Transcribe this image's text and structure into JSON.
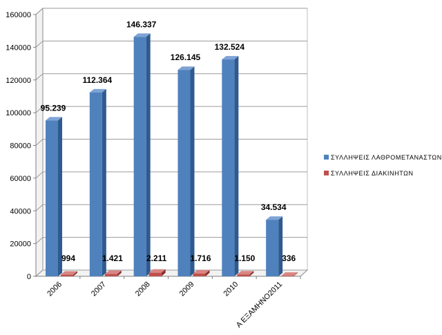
{
  "chart_data": {
    "type": "bar",
    "style": "3d-clustered-column",
    "categories": [
      "2006",
      "2007",
      "2008",
      "2009",
      "2010",
      "Α ΕΞΑΜΗΝΟ2011"
    ],
    "series": [
      {
        "name": "ΣΥΛΛΗΨΕΙΣ ΛΑΘΡΟΜΕΤΑΝΑΣΤΩΝ",
        "values": [
          95239,
          112364,
          146337,
          126145,
          132524,
          34534
        ],
        "labels": [
          "95.239",
          "112.364",
          "146.337",
          "126.145",
          "132.524",
          "34.534"
        ],
        "color": "#4f81bd"
      },
      {
        "name": "ΣΥΛΛΗΨΕΙΣ ΔΙΑΚΙΝΗΤΩΝ",
        "values": [
          994,
          1421,
          2211,
          1716,
          1150,
          336
        ],
        "labels": [
          "994",
          "1.421",
          "2.211",
          "1.716",
          "1.150",
          "336"
        ],
        "color": "#c0504d"
      }
    ],
    "ylim": [
      0,
      160000
    ],
    "yticks": [
      "0",
      "20000",
      "40000",
      "60000",
      "80000",
      "100000",
      "120000",
      "140000",
      "160000"
    ],
    "grid": true,
    "legend": "right"
  }
}
